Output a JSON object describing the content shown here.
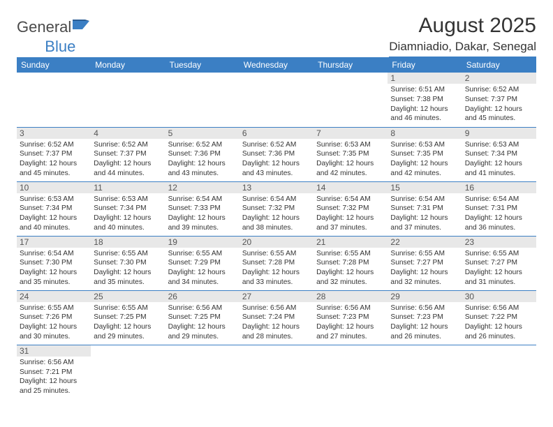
{
  "logo": {
    "text_a": "General",
    "text_b": "Blue"
  },
  "title": "August 2025",
  "location": "Diamniadio, Dakar, Senegal",
  "colors": {
    "header_bg": "#3b7fc4",
    "header_fg": "#ffffff",
    "daynum_bg": "#e8e8e8",
    "cell_border": "#3b7fc4",
    "text": "#333333"
  },
  "day_headers": [
    "Sunday",
    "Monday",
    "Tuesday",
    "Wednesday",
    "Thursday",
    "Friday",
    "Saturday"
  ],
  "weeks": [
    [
      null,
      null,
      null,
      null,
      null,
      {
        "n": "1",
        "sr": "6:51 AM",
        "ss": "7:38 PM",
        "dl": "12 hours and 46 minutes."
      },
      {
        "n": "2",
        "sr": "6:52 AM",
        "ss": "7:37 PM",
        "dl": "12 hours and 45 minutes."
      }
    ],
    [
      {
        "n": "3",
        "sr": "6:52 AM",
        "ss": "7:37 PM",
        "dl": "12 hours and 45 minutes."
      },
      {
        "n": "4",
        "sr": "6:52 AM",
        "ss": "7:37 PM",
        "dl": "12 hours and 44 minutes."
      },
      {
        "n": "5",
        "sr": "6:52 AM",
        "ss": "7:36 PM",
        "dl": "12 hours and 43 minutes."
      },
      {
        "n": "6",
        "sr": "6:52 AM",
        "ss": "7:36 PM",
        "dl": "12 hours and 43 minutes."
      },
      {
        "n": "7",
        "sr": "6:53 AM",
        "ss": "7:35 PM",
        "dl": "12 hours and 42 minutes."
      },
      {
        "n": "8",
        "sr": "6:53 AM",
        "ss": "7:35 PM",
        "dl": "12 hours and 42 minutes."
      },
      {
        "n": "9",
        "sr": "6:53 AM",
        "ss": "7:34 PM",
        "dl": "12 hours and 41 minutes."
      }
    ],
    [
      {
        "n": "10",
        "sr": "6:53 AM",
        "ss": "7:34 PM",
        "dl": "12 hours and 40 minutes."
      },
      {
        "n": "11",
        "sr": "6:53 AM",
        "ss": "7:34 PM",
        "dl": "12 hours and 40 minutes."
      },
      {
        "n": "12",
        "sr": "6:54 AM",
        "ss": "7:33 PM",
        "dl": "12 hours and 39 minutes."
      },
      {
        "n": "13",
        "sr": "6:54 AM",
        "ss": "7:32 PM",
        "dl": "12 hours and 38 minutes."
      },
      {
        "n": "14",
        "sr": "6:54 AM",
        "ss": "7:32 PM",
        "dl": "12 hours and 37 minutes."
      },
      {
        "n": "15",
        "sr": "6:54 AM",
        "ss": "7:31 PM",
        "dl": "12 hours and 37 minutes."
      },
      {
        "n": "16",
        "sr": "6:54 AM",
        "ss": "7:31 PM",
        "dl": "12 hours and 36 minutes."
      }
    ],
    [
      {
        "n": "17",
        "sr": "6:54 AM",
        "ss": "7:30 PM",
        "dl": "12 hours and 35 minutes."
      },
      {
        "n": "18",
        "sr": "6:55 AM",
        "ss": "7:30 PM",
        "dl": "12 hours and 35 minutes."
      },
      {
        "n": "19",
        "sr": "6:55 AM",
        "ss": "7:29 PM",
        "dl": "12 hours and 34 minutes."
      },
      {
        "n": "20",
        "sr": "6:55 AM",
        "ss": "7:28 PM",
        "dl": "12 hours and 33 minutes."
      },
      {
        "n": "21",
        "sr": "6:55 AM",
        "ss": "7:28 PM",
        "dl": "12 hours and 32 minutes."
      },
      {
        "n": "22",
        "sr": "6:55 AM",
        "ss": "7:27 PM",
        "dl": "12 hours and 32 minutes."
      },
      {
        "n": "23",
        "sr": "6:55 AM",
        "ss": "7:27 PM",
        "dl": "12 hours and 31 minutes."
      }
    ],
    [
      {
        "n": "24",
        "sr": "6:55 AM",
        "ss": "7:26 PM",
        "dl": "12 hours and 30 minutes."
      },
      {
        "n": "25",
        "sr": "6:55 AM",
        "ss": "7:25 PM",
        "dl": "12 hours and 29 minutes."
      },
      {
        "n": "26",
        "sr": "6:56 AM",
        "ss": "7:25 PM",
        "dl": "12 hours and 29 minutes."
      },
      {
        "n": "27",
        "sr": "6:56 AM",
        "ss": "7:24 PM",
        "dl": "12 hours and 28 minutes."
      },
      {
        "n": "28",
        "sr": "6:56 AM",
        "ss": "7:23 PM",
        "dl": "12 hours and 27 minutes."
      },
      {
        "n": "29",
        "sr": "6:56 AM",
        "ss": "7:23 PM",
        "dl": "12 hours and 26 minutes."
      },
      {
        "n": "30",
        "sr": "6:56 AM",
        "ss": "7:22 PM",
        "dl": "12 hours and 26 minutes."
      }
    ],
    [
      {
        "n": "31",
        "sr": "6:56 AM",
        "ss": "7:21 PM",
        "dl": "12 hours and 25 minutes."
      },
      null,
      null,
      null,
      null,
      null,
      null
    ]
  ],
  "labels": {
    "sunrise": "Sunrise:",
    "sunset": "Sunset:",
    "daylight": "Daylight:"
  }
}
